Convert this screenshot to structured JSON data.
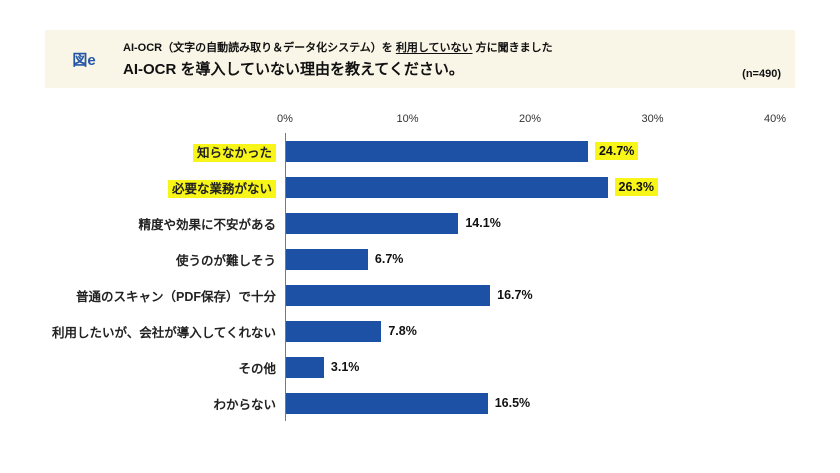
{
  "header": {
    "fig_label": "図e",
    "line1_part1": "AI-OCR（文字の自動読み取り＆データ化システム）を ",
    "line1_underline": "利用していない",
    "line1_part2": " 方に聞きました",
    "line2": "AI-OCR を導入していない理由を教えてください。",
    "sample": "(n=490)"
  },
  "colors": {
    "bar": "#1d51a5",
    "highlight": "#f8f519",
    "header_bg": "#faf6e7",
    "fig_blue": "#2456a5"
  },
  "chart_data": {
    "type": "bar",
    "orientation": "horizontal",
    "title": "AI-OCR を導入していない理由を教えてください。",
    "xlabel": "",
    "ylabel": "",
    "xlim": [
      0,
      40
    ],
    "x_ticks": [
      "0%",
      "10%",
      "20%",
      "30%",
      "40%"
    ],
    "grid": false,
    "legend": false,
    "categories": [
      "知らなかった",
      "必要な業務がない",
      "精度や効果に不安がある",
      "使うのが難しそう",
      "普通のスキャン（PDF保存）で十分",
      "利用したいが、会社が導入してくれない",
      "その他",
      "わからない"
    ],
    "values": [
      24.7,
      26.3,
      14.1,
      6.7,
      16.7,
      7.8,
      3.1,
      16.5
    ],
    "value_labels": [
      "24.7%",
      "26.3%",
      "14.1%",
      "6.7%",
      "16.7%",
      "7.8%",
      "3.1%",
      "16.5%"
    ],
    "highlighted": [
      true,
      true,
      false,
      false,
      false,
      false,
      false,
      false
    ]
  }
}
